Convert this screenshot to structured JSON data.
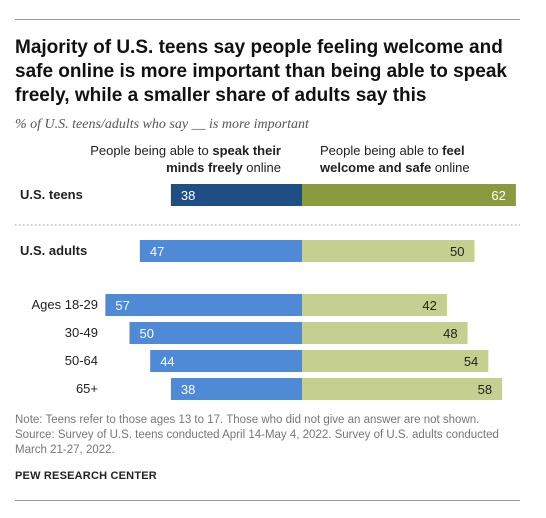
{
  "title": "Majority of U.S. teens say people feeling welcome and safe online is more important than being able to speak freely, while a smaller share of adults say this",
  "subtitle": "% of U.S. teens/adults who say __ is more important",
  "columns": {
    "left_prefix": "People being able to ",
    "left_bold": "speak their minds freely",
    "left_suffix": " online",
    "right_prefix": "People being able to ",
    "right_bold": "feel welcome and safe",
    "right_suffix": " online"
  },
  "colors": {
    "teens_left": "#1f4e85",
    "teens_right": "#8a9b3f",
    "adults_left": "#4e8ad6",
    "adults_right": "#c5cf8f"
  },
  "chart_data": {
    "type": "bar",
    "orientation": "diverging-horizontal",
    "categories": [
      "U.S. teens",
      "U.S. adults",
      "Ages 18-29",
      "30-49",
      "50-64",
      "65+"
    ],
    "series": [
      {
        "name": "People being able to speak their minds freely online",
        "values": [
          38,
          47,
          57,
          50,
          44,
          38
        ]
      },
      {
        "name": "People being able to feel welcome and safe online",
        "values": [
          62,
          50,
          42,
          48,
          54,
          58
        ]
      }
    ],
    "bold_categories": [
      "U.S. teens",
      "U.S. adults"
    ]
  },
  "note": "Note: Teens refer to those ages 13 to 17. Those who did not give an answer are not shown.",
  "source": "Source: Survey of U.S. teens conducted April 14-May 4, 2022. Survey of U.S. adults conducted March 21-27, 2022.",
  "credit": "PEW RESEARCH CENTER"
}
